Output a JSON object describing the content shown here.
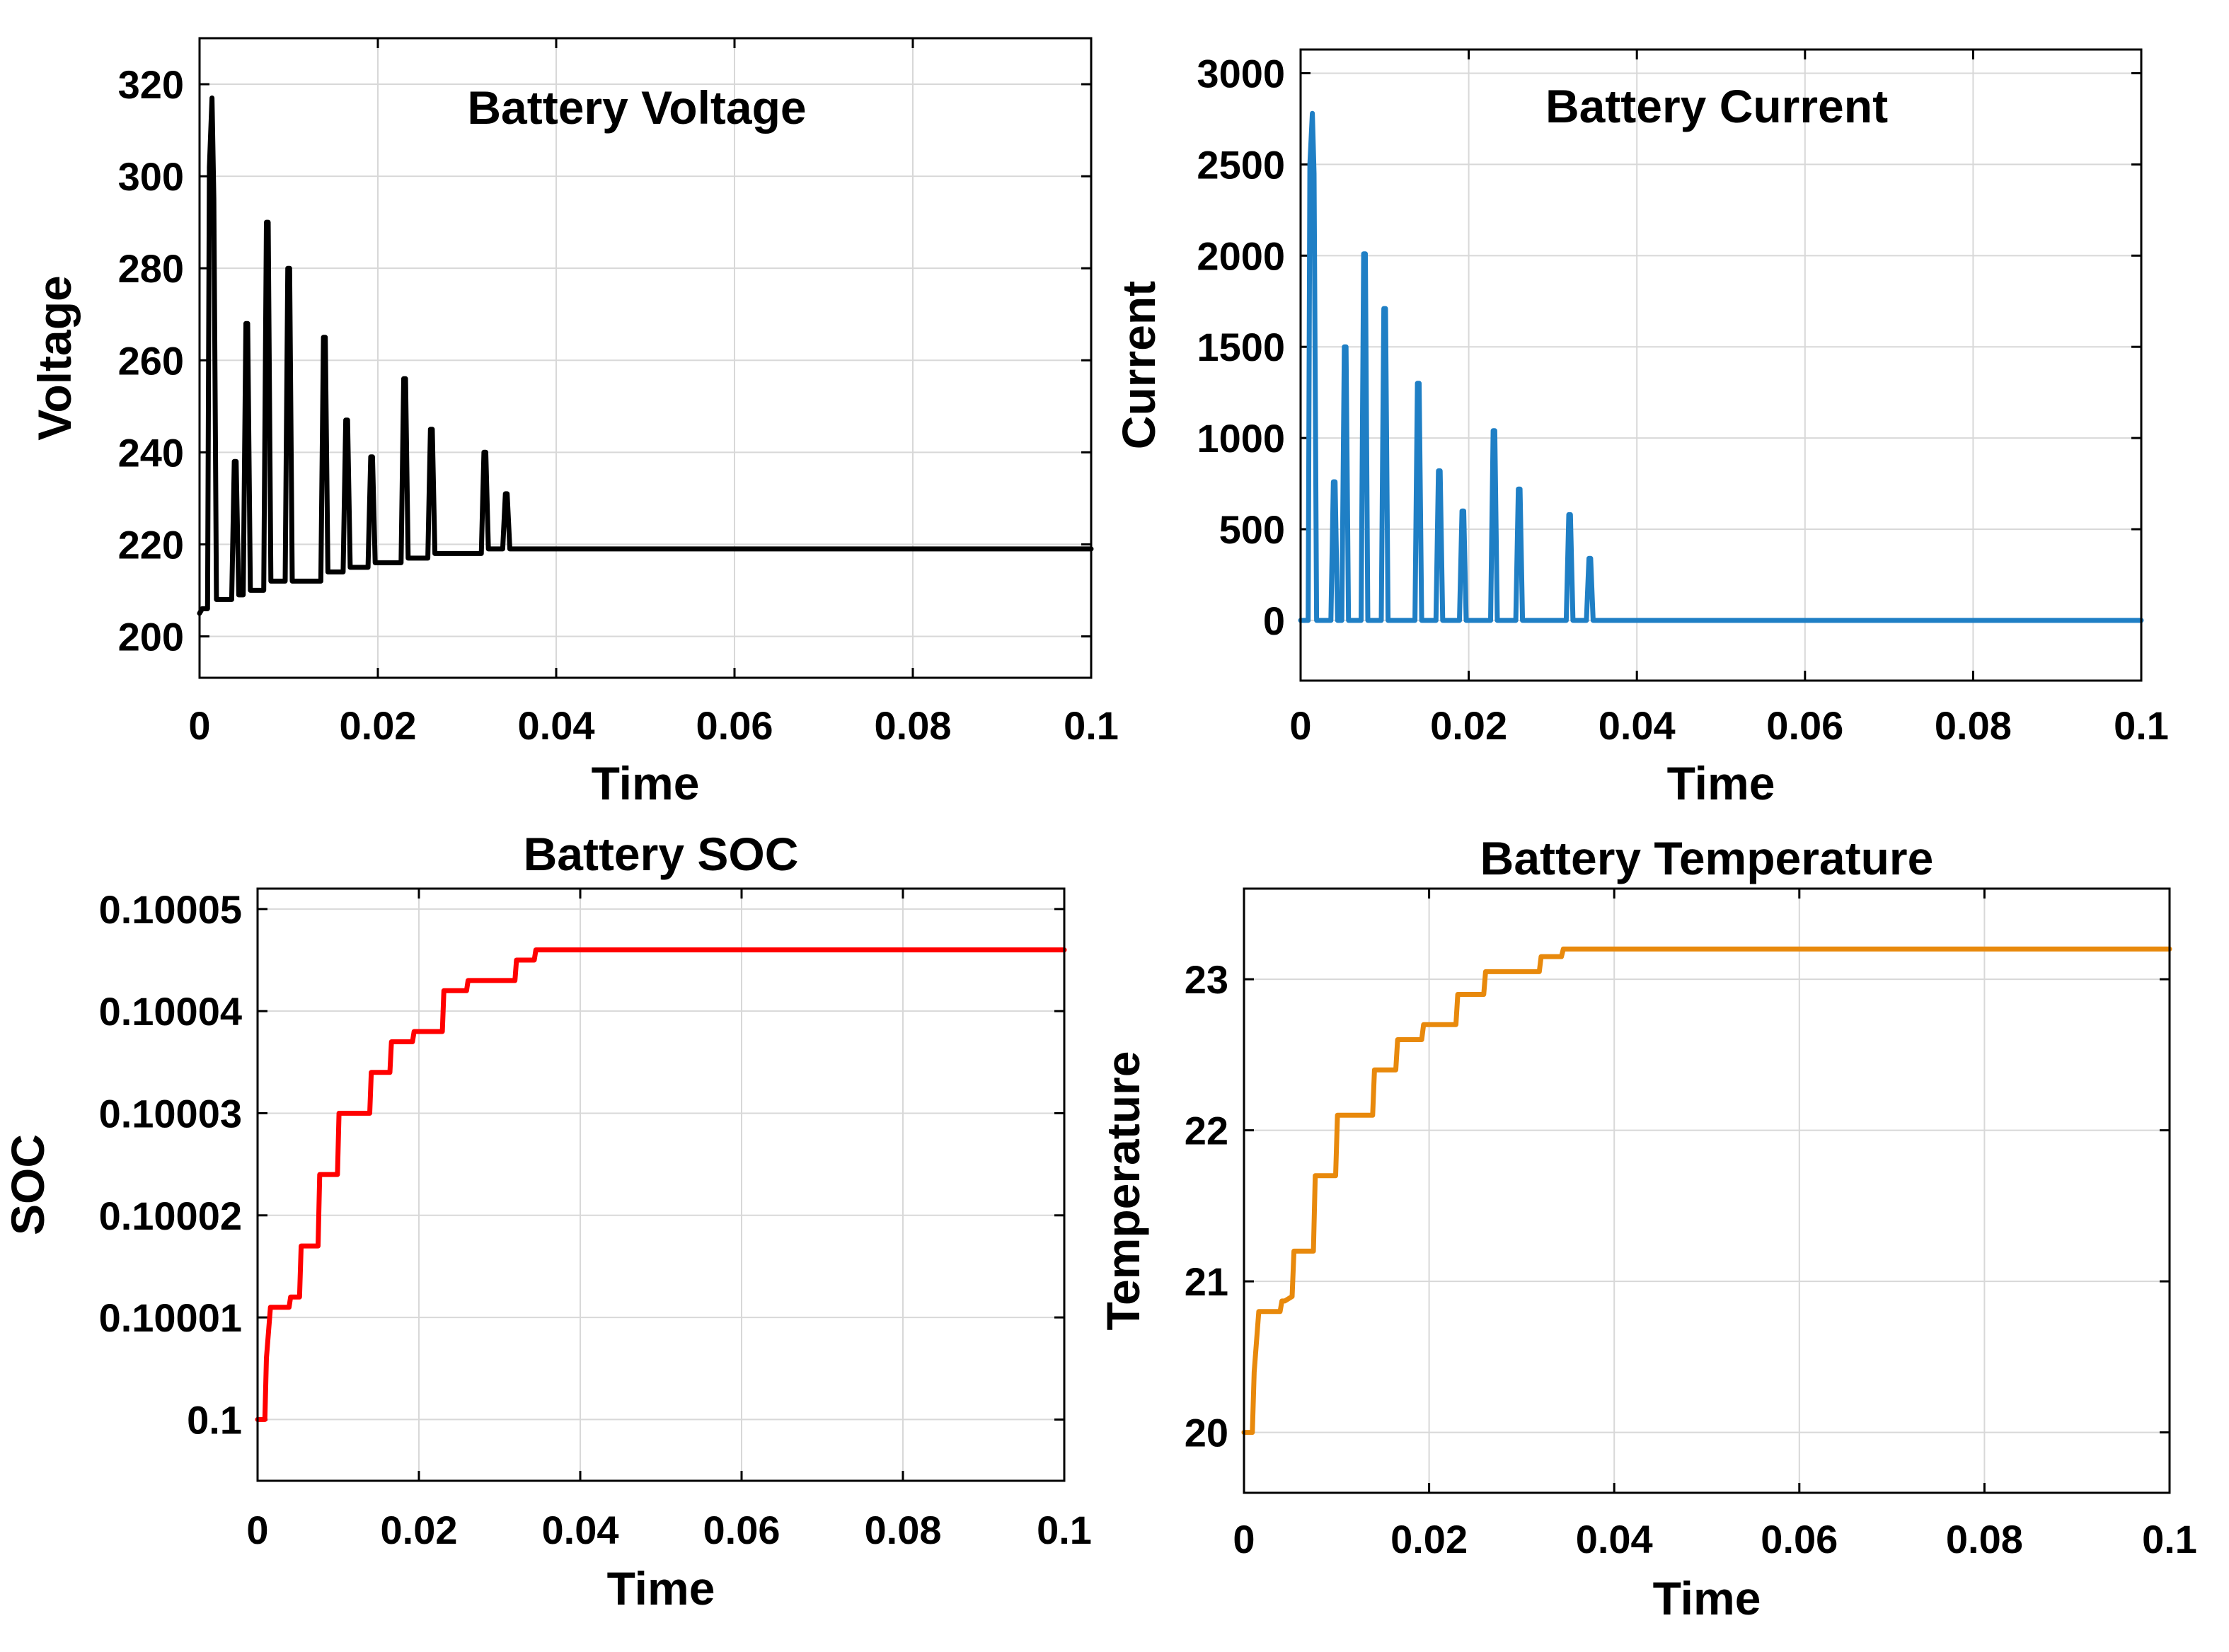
{
  "chart_data": [
    {
      "type": "line",
      "title": "Battery Voltage",
      "xlabel": "Time",
      "ylabel": "Voltage",
      "xlim": [
        0,
        0.1
      ],
      "ylim": [
        191,
        330
      ],
      "xticks": [
        0,
        0.02,
        0.04,
        0.06,
        0.08,
        0.1
      ],
      "xtick_labels": [
        "0",
        "0.02",
        "0.04",
        "0.06",
        "0.08",
        "0.1"
      ],
      "yticks": [
        200,
        220,
        240,
        260,
        280,
        300,
        320
      ],
      "ytick_labels": [
        "200",
        "220",
        "240",
        "260",
        "280",
        "300",
        "320"
      ],
      "grid": true,
      "color": "#000000",
      "series": [
        {
          "x": [
            0,
            0.0003,
            0.0009,
            0.0011,
            0.0014,
            0.0016,
            0.0019,
            0.0021,
            0.0024,
            0.0036,
            0.0039,
            0.0041,
            0.0044,
            0.0049,
            0.0052,
            0.0054,
            0.0057,
            0.006,
            0.0072,
            0.0075,
            0.0077,
            0.008,
            0.0096,
            0.0099,
            0.0101,
            0.0104,
            0.0107,
            0.0136,
            0.0139,
            0.0141,
            0.0144,
            0.0147,
            0.0161,
            0.0164,
            0.0166,
            0.0169,
            0.0172,
            0.0189,
            0.0192,
            0.0194,
            0.0197,
            0.02,
            0.0226,
            0.0229,
            0.0231,
            0.0234,
            0.0237,
            0.0256,
            0.0259,
            0.0261,
            0.0264,
            0.0267,
            0.0316,
            0.0319,
            0.0321,
            0.0324,
            0.0327,
            0.034,
            0.0343,
            0.0345,
            0.0348,
            0.0351,
            0.1
          ],
          "y": [
            205,
            206,
            206,
            302,
            317,
            295,
            208,
            208,
            208,
            208,
            238,
            238,
            209,
            209,
            268,
            268,
            210,
            210,
            210,
            290,
            290,
            212,
            212,
            280,
            280,
            212,
            212,
            212,
            265,
            265,
            214,
            214,
            214,
            247,
            247,
            215,
            215,
            215,
            239,
            239,
            216,
            216,
            216,
            256,
            256,
            217,
            217,
            217,
            245,
            245,
            218,
            218,
            218,
            240,
            240,
            219,
            219,
            219,
            231,
            231,
            219,
            219,
            219
          ]
        }
      ]
    },
    {
      "type": "line",
      "title": "Battery Current",
      "xlabel": "Time",
      "ylabel": "Current",
      "xlim": [
        0,
        0.1
      ],
      "ylim": [
        -330,
        3130
      ],
      "xticks": [
        0,
        0.02,
        0.04,
        0.06,
        0.08,
        0.1
      ],
      "xtick_labels": [
        "0",
        "0.02",
        "0.04",
        "0.06",
        "0.08",
        "0.1"
      ],
      "yticks": [
        0,
        500,
        1000,
        1500,
        2000,
        2500,
        3000
      ],
      "ytick_labels": [
        "0",
        "500",
        "1000",
        "1500",
        "2000",
        "2500",
        "3000"
      ],
      "grid": true,
      "color": "#1f7fc5",
      "series": [
        {
          "x": [
            0,
            0.0009,
            0.0011,
            0.0014,
            0.0016,
            0.0019,
            0.0021,
            0.0036,
            0.0039,
            0.0041,
            0.0044,
            0.0049,
            0.0052,
            0.0054,
            0.0057,
            0.0072,
            0.0075,
            0.0077,
            0.008,
            0.0096,
            0.0099,
            0.0101,
            0.0104,
            0.0136,
            0.0139,
            0.0141,
            0.0144,
            0.0161,
            0.0164,
            0.0166,
            0.0169,
            0.0189,
            0.0192,
            0.0194,
            0.0197,
            0.0226,
            0.0229,
            0.0231,
            0.0234,
            0.0256,
            0.0259,
            0.0261,
            0.0264,
            0.0316,
            0.0319,
            0.0321,
            0.0324,
            0.034,
            0.0343,
            0.0345,
            0.0348,
            0.1
          ],
          "y": [
            0,
            0,
            2500,
            2780,
            2450,
            0,
            0,
            0,
            760,
            760,
            0,
            0,
            1500,
            1500,
            0,
            0,
            2010,
            2010,
            0,
            0,
            1710,
            1710,
            0,
            0,
            1300,
            1300,
            0,
            0,
            820,
            820,
            0,
            0,
            600,
            600,
            0,
            0,
            1040,
            1040,
            0,
            0,
            720,
            720,
            0,
            0,
            580,
            580,
            0,
            0,
            340,
            340,
            0,
            0
          ]
        }
      ]
    },
    {
      "type": "line",
      "title": "Battery SOC",
      "xlabel": "Time",
      "ylabel": "SOC",
      "xlim": [
        0,
        0.1
      ],
      "ylim": [
        0.099994,
        0.100052
      ],
      "xticks": [
        0,
        0.02,
        0.04,
        0.06,
        0.08,
        0.1
      ],
      "xtick_labels": [
        "0",
        "0.02",
        "0.04",
        "0.06",
        "0.08",
        "0.1"
      ],
      "yticks": [
        0.1,
        0.10001,
        0.10002,
        0.10003,
        0.10004,
        0.10005
      ],
      "ytick_labels": [
        "0.1",
        "0.10001",
        "0.10002",
        "0.10003",
        "0.10004",
        "0.10005"
      ],
      "grid": true,
      "color": "#ff0000",
      "series": [
        {
          "x": [
            0,
            0.0009,
            0.0011,
            0.0016,
            0.0019,
            0.0039,
            0.0041,
            0.0044,
            0.0052,
            0.0054,
            0.0057,
            0.0075,
            0.0077,
            0.008,
            0.0099,
            0.0101,
            0.0104,
            0.0139,
            0.0141,
            0.0144,
            0.0164,
            0.0166,
            0.0169,
            0.0192,
            0.0194,
            0.0197,
            0.0229,
            0.0231,
            0.0234,
            0.0259,
            0.0261,
            0.0264,
            0.0319,
            0.0321,
            0.0324,
            0.0343,
            0.0345,
            0.0348,
            0.1
          ],
          "y": [
            0.1,
            0.1,
            0.100006,
            0.100011,
            0.100011,
            0.100011,
            0.100012,
            0.100012,
            0.100012,
            0.100017,
            0.100017,
            0.100017,
            0.100024,
            0.100024,
            0.100024,
            0.10003,
            0.10003,
            0.10003,
            0.100034,
            0.100034,
            0.100034,
            0.100037,
            0.100037,
            0.100037,
            0.100038,
            0.100038,
            0.100038,
            0.100042,
            0.100042,
            0.100042,
            0.100043,
            0.100043,
            0.100043,
            0.100045,
            0.100045,
            0.100045,
            0.100046,
            0.100046,
            0.100046
          ]
        }
      ]
    },
    {
      "type": "line",
      "title": "Battery Temperature",
      "xlabel": "Time",
      "ylabel": "Temperature",
      "xlim": [
        0,
        0.1
      ],
      "ylim": [
        19.6,
        23.6
      ],
      "xticks": [
        0,
        0.02,
        0.04,
        0.06,
        0.08,
        0.1
      ],
      "xtick_labels": [
        "0",
        "0.02",
        "0.04",
        "0.06",
        "0.08",
        "0.1"
      ],
      "yticks": [
        20,
        21,
        22,
        23
      ],
      "ytick_labels": [
        "20",
        "21",
        "22",
        "23"
      ],
      "grid": true,
      "color": "#e8890c",
      "series": [
        {
          "x": [
            0,
            0.0009,
            0.0011,
            0.0016,
            0.0019,
            0.0039,
            0.0041,
            0.0044,
            0.0052,
            0.0054,
            0.0057,
            0.0075,
            0.0077,
            0.008,
            0.0099,
            0.0101,
            0.0104,
            0.0139,
            0.0141,
            0.0144,
            0.0164,
            0.0166,
            0.0169,
            0.0192,
            0.0194,
            0.0197,
            0.0229,
            0.0231,
            0.0234,
            0.0259,
            0.0261,
            0.0264,
            0.0319,
            0.0321,
            0.0324,
            0.0343,
            0.0345,
            0.0348,
            0.1
          ],
          "y": [
            20,
            20,
            20.4,
            20.8,
            20.8,
            20.8,
            20.87,
            20.87,
            20.9,
            21.2,
            21.2,
            21.2,
            21.7,
            21.7,
            21.7,
            22.1,
            22.1,
            22.1,
            22.4,
            22.4,
            22.4,
            22.6,
            22.6,
            22.6,
            22.7,
            22.7,
            22.7,
            22.9,
            22.9,
            22.9,
            23.05,
            23.05,
            23.05,
            23.15,
            23.15,
            23.15,
            23.2,
            23.2,
            23.2
          ]
        }
      ]
    }
  ]
}
